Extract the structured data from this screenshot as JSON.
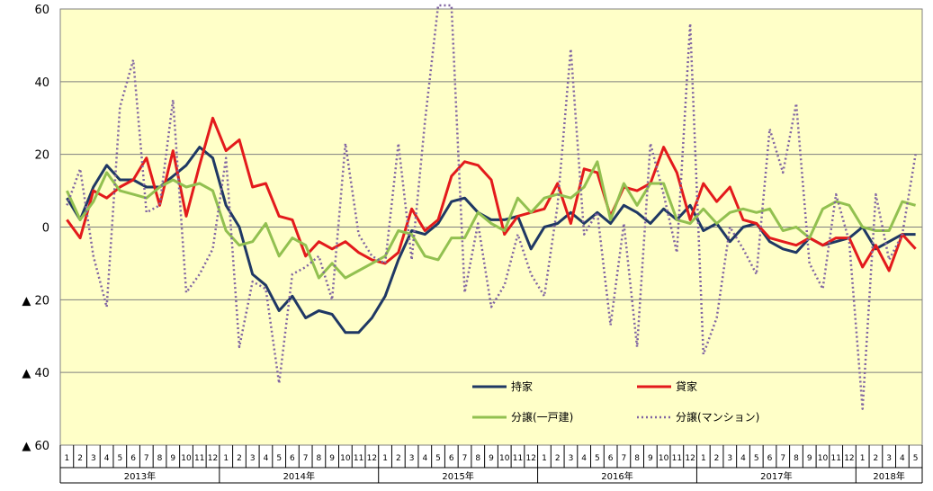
{
  "chart_data": {
    "type": "line",
    "y_axis": {
      "min": -60,
      "max": 60,
      "step": 20,
      "tick_labels": [
        "60",
        "40",
        "20",
        "0",
        "▲ 20",
        "▲ 40",
        "▲ 60"
      ]
    },
    "x_axis": {
      "month_labels": [
        "1",
        "2",
        "3",
        "4",
        "5",
        "6",
        "7",
        "8",
        "9",
        "10",
        "11",
        "12",
        "1",
        "2",
        "3",
        "4",
        "5",
        "6",
        "7",
        "8",
        "9",
        "10",
        "11",
        "12",
        "1",
        "2",
        "3",
        "4",
        "5",
        "6",
        "7",
        "8",
        "9",
        "10",
        "11",
        "12",
        "1",
        "2",
        "3",
        "4",
        "5",
        "6",
        "7",
        "8",
        "9",
        "10",
        "11",
        "12",
        "1",
        "2",
        "3",
        "4",
        "5",
        "6",
        "7",
        "8",
        "9",
        "10",
        "11",
        "12",
        "1",
        "2",
        "3",
        "4",
        "5"
      ],
      "year_groups": [
        {
          "label": "2013年",
          "months": 12
        },
        {
          "label": "2014年",
          "months": 12
        },
        {
          "label": "2015年",
          "months": 12
        },
        {
          "label": "2016年",
          "months": 12
        },
        {
          "label": "2017年",
          "months": 12
        },
        {
          "label": "2018年",
          "months": 5
        }
      ]
    },
    "grid": true,
    "legend": "inside-bottom-right",
    "series": [
      {
        "name": "持家",
        "color": "#1f3864",
        "style": "solid",
        "values": [
          8,
          2,
          11,
          17,
          13,
          13,
          11,
          11,
          14,
          17,
          22,
          19,
          6,
          0,
          -13,
          -16,
          -23,
          -19,
          -25,
          -23,
          -24,
          -29,
          -29,
          -25,
          -19,
          -9,
          -1,
          -2,
          1,
          7,
          8,
          4,
          2,
          2,
          3,
          -6,
          0,
          1,
          4,
          1,
          4,
          1,
          6,
          4,
          1,
          5,
          2,
          6,
          -1,
          1,
          -4,
          0,
          1,
          -4,
          -6,
          -7,
          -3,
          -5,
          -4,
          -3,
          0,
          -6,
          -4,
          -2,
          -2
        ]
      },
      {
        "name": "貸家",
        "color": "#e31a1c",
        "style": "solid",
        "values": [
          2,
          -3,
          10,
          8,
          11,
          13,
          19,
          6,
          21,
          3,
          17,
          30,
          21,
          24,
          11,
          12,
          3,
          2,
          -8,
          -4,
          -6,
          -4,
          -7,
          -9,
          -10,
          -7,
          5,
          -1,
          2,
          14,
          18,
          17,
          13,
          -2,
          3,
          4,
          5,
          12,
          1,
          16,
          15,
          3,
          11,
          10,
          12,
          22,
          15,
          2,
          12,
          7,
          11,
          2,
          1,
          -3,
          -4,
          -5,
          -3,
          -5,
          -3,
          -3,
          -11,
          -5,
          -12,
          -2,
          -6
        ]
      },
      {
        "name": "分譲(一戸建)",
        "color": "#92c050",
        "style": "solid",
        "values": [
          10,
          2,
          7,
          15,
          10,
          9,
          8,
          11,
          13,
          11,
          12,
          10,
          -1,
          -5,
          -4,
          1,
          -8,
          -3,
          -5,
          -14,
          -10,
          -14,
          -12,
          -10,
          -8,
          -1,
          -2,
          -8,
          -9,
          -3,
          -3,
          4,
          1,
          -1,
          8,
          4,
          8,
          9,
          8,
          11,
          18,
          2,
          12,
          6,
          12,
          12,
          2,
          1,
          5,
          1,
          4,
          5,
          4,
          5,
          -1,
          0,
          -3,
          5,
          7,
          6,
          0,
          -1,
          -1,
          7,
          6
        ]
      },
      {
        "name": "分譲(マンション)",
        "color": "#8064a2",
        "style": "dotted",
        "values": [
          6,
          16,
          -8,
          -22,
          33,
          46,
          4,
          6,
          35,
          -18,
          -13,
          -6,
          19,
          -33,
          -15,
          -17,
          -43,
          -13,
          -11,
          -8,
          -20,
          23,
          -2,
          -8,
          -10,
          23,
          -9,
          29,
          61,
          61,
          -18,
          1,
          -22,
          -16,
          -2,
          -13,
          -19,
          6,
          49,
          -2,
          4,
          -27,
          1,
          -33,
          23,
          9,
          -7,
          56,
          -35,
          -25,
          0,
          -6,
          -13,
          27,
          15,
          34,
          -10,
          -17,
          9,
          -4,
          -50,
          9,
          -9,
          -2,
          20
        ]
      }
    ]
  }
}
